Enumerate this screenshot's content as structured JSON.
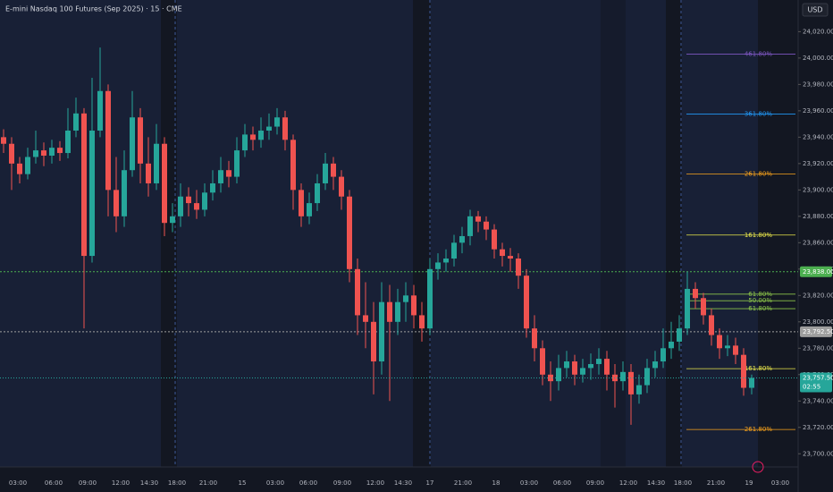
{
  "chart_data": {
    "type": "candlestick",
    "title": "E-mini Nasdaq 100 Futures (Sep 2025) · 15 · CME",
    "currency": "USD",
    "up_color": "#26a69a",
    "down_color": "#ef5350",
    "ylim": [
      23690,
      24044
    ],
    "yticks": [
      {
        "value": 23700,
        "label": "23,700.00"
      },
      {
        "value": 23720,
        "label": "23,720.00"
      },
      {
        "value": 23740,
        "label": "23,740.00"
      },
      {
        "value": 23760,
        "label": "23,760.00"
      },
      {
        "value": 23780,
        "label": "23,780.00"
      },
      {
        "value": 23800,
        "label": "23,800.00"
      },
      {
        "value": 23820,
        "label": "23,820.00"
      },
      {
        "value": 23840,
        "label": "23,840.00"
      },
      {
        "value": 23860,
        "label": "23,860.00"
      },
      {
        "value": 23880,
        "label": "23,880.00"
      },
      {
        "value": 23900,
        "label": "23,900.00"
      },
      {
        "value": 23920,
        "label": "23,920.00"
      },
      {
        "value": 23940,
        "label": "23,940.00"
      },
      {
        "value": 23960,
        "label": "23,960.00"
      },
      {
        "value": 23980,
        "label": "23,980.00"
      },
      {
        "value": 24000,
        "label": "24,000.00"
      },
      {
        "value": 24020,
        "label": "24,020.00"
      }
    ],
    "time_labels": [
      "03:00",
      "06:00",
      "09:00",
      "12:00",
      "14:30",
      "18:00",
      "21:00",
      "15",
      "03:00",
      "06:00",
      "09:00",
      "12:00",
      "14:30",
      "17",
      "21:00",
      "18",
      "03:00",
      "06:00",
      "09:00",
      "12:00",
      "14:30",
      "18:00",
      "21:00",
      "19",
      "03:00"
    ],
    "open": [
      23940,
      23935,
      23920,
      23912,
      23925,
      23930,
      23926,
      23932,
      23928,
      23945,
      23958,
      23850,
      23945,
      23975,
      23900,
      23880,
      23915,
      23955,
      23920,
      23905,
      23935,
      23875,
      23880,
      23895,
      23890,
      23885,
      23898,
      23905,
      23915,
      23910,
      23930,
      23942,
      23938,
      23945,
      23948,
      23955,
      23938,
      23900,
      23880,
      23890,
      23905,
      23920,
      23910,
      23895,
      23840,
      23805,
      23800,
      23770,
      23815,
      23800,
      23815,
      23820,
      23805,
      23795,
      23840,
      23845,
      23848,
      23860,
      23865,
      23880,
      23876,
      23870,
      23855,
      23850,
      23848,
      23835,
      23795,
      23780,
      23760,
      23755,
      23765,
      23770,
      23760,
      23765,
      23768,
      23772,
      23760,
      23755,
      23762,
      23745,
      23752,
      23765,
      23770,
      23780,
      23785,
      23795,
      23825,
      23818,
      23805,
      23790,
      23780,
      23782,
      23775,
      23750
    ],
    "high": [
      23946,
      23940,
      23925,
      23932,
      23945,
      23936,
      23938,
      23937,
      23962,
      23970,
      23962,
      23985,
      24008,
      23980,
      23925,
      23930,
      23975,
      23962,
      23940,
      23950,
      23940,
      23890,
      23905,
      23902,
      23900,
      23905,
      23915,
      23925,
      23922,
      23940,
      23950,
      23948,
      23955,
      23958,
      23962,
      23960,
      23942,
      23905,
      23898,
      23912,
      23928,
      23925,
      23915,
      23900,
      23848,
      23830,
      23815,
      23830,
      23828,
      23825,
      23830,
      23828,
      23815,
      23848,
      23852,
      23855,
      23866,
      23872,
      23885,
      23884,
      23880,
      23874,
      23860,
      23856,
      23852,
      23840,
      23805,
      23786,
      23770,
      23775,
      23778,
      23775,
      23772,
      23776,
      23780,
      23778,
      23768,
      23770,
      23768,
      23760,
      23772,
      23778,
      23795,
      23800,
      23805,
      23838,
      23830,
      23822,
      23810,
      23795,
      23790,
      23788,
      23780,
      23760
    ],
    "low": [
      23928,
      23900,
      23905,
      23908,
      23920,
      23918,
      23920,
      23922,
      23924,
      23940,
      23795,
      23845,
      23940,
      23880,
      23868,
      23872,
      23910,
      23905,
      23895,
      23900,
      23865,
      23868,
      23872,
      23880,
      23878,
      23880,
      23892,
      23898,
      23902,
      23905,
      23925,
      23930,
      23932,
      23938,
      23942,
      23930,
      23885,
      23872,
      23874,
      23884,
      23900,
      23900,
      23885,
      23830,
      23790,
      23780,
      23745,
      23760,
      23740,
      23790,
      23800,
      23795,
      23785,
      23790,
      23832,
      23838,
      23842,
      23852,
      23858,
      23868,
      23862,
      23848,
      23842,
      23838,
      23825,
      23788,
      23770,
      23752,
      23740,
      23748,
      23758,
      23752,
      23754,
      23756,
      23760,
      23748,
      23735,
      23748,
      23722,
      23738,
      23746,
      23758,
      23765,
      23772,
      23778,
      23790,
      23810,
      23798,
      23782,
      23772,
      23774,
      23768,
      23744,
      23745
    ],
    "close": [
      23935,
      23920,
      23912,
      23925,
      23930,
      23926,
      23932,
      23928,
      23945,
      23958,
      23850,
      23945,
      23975,
      23900,
      23880,
      23915,
      23955,
      23920,
      23905,
      23935,
      23875,
      23880,
      23895,
      23890,
      23885,
      23898,
      23905,
      23915,
      23910,
      23930,
      23942,
      23938,
      23945,
      23948,
      23955,
      23938,
      23900,
      23880,
      23890,
      23905,
      23920,
      23910,
      23895,
      23840,
      23805,
      23800,
      23770,
      23815,
      23800,
      23815,
      23820,
      23805,
      23795,
      23840,
      23845,
      23848,
      23860,
      23865,
      23880,
      23876,
      23870,
      23855,
      23850,
      23848,
      23835,
      23795,
      23780,
      23760,
      23755,
      23765,
      23770,
      23760,
      23765,
      23768,
      23772,
      23760,
      23755,
      23762,
      23745,
      23752,
      23765,
      23770,
      23780,
      23785,
      23795,
      23825,
      23818,
      23805,
      23790,
      23780,
      23782,
      23775,
      23750,
      23757.5
    ],
    "fib_levels": [
      {
        "label": "461.80%",
        "value": 24003,
        "color": "#7e57c2"
      },
      {
        "label": "361.80%",
        "value": 23957.5,
        "color": "#2196f3"
      },
      {
        "label": "261.80%",
        "value": 23912,
        "color": "#f7a21b"
      },
      {
        "label": "161.80%",
        "value": 23865.8,
        "color": "#e8e54a"
      },
      {
        "label": "61.80%",
        "value": 23821,
        "color": "#8bc34a"
      },
      {
        "label": "50.00%",
        "value": 23816,
        "color": "#8bc34a"
      },
      {
        "label": "61.80%",
        "value": 23810,
        "color": "#8bc34a"
      },
      {
        "label": "161.80%",
        "value": 23764.5,
        "color": "#e8e54a"
      },
      {
        "label": "261.80%",
        "value": 23718.4,
        "color": "#f7a21b"
      }
    ],
    "price_lines": [
      {
        "value": 23838,
        "label": "23,838.00",
        "color": "#4caf50"
      },
      {
        "value": 23792.5,
        "label": "23,792.50",
        "color": "#9e9e9e"
      }
    ],
    "current_price": {
      "value": 23757.5,
      "label": "23,757.50"
    },
    "countdown": "02:55"
  }
}
